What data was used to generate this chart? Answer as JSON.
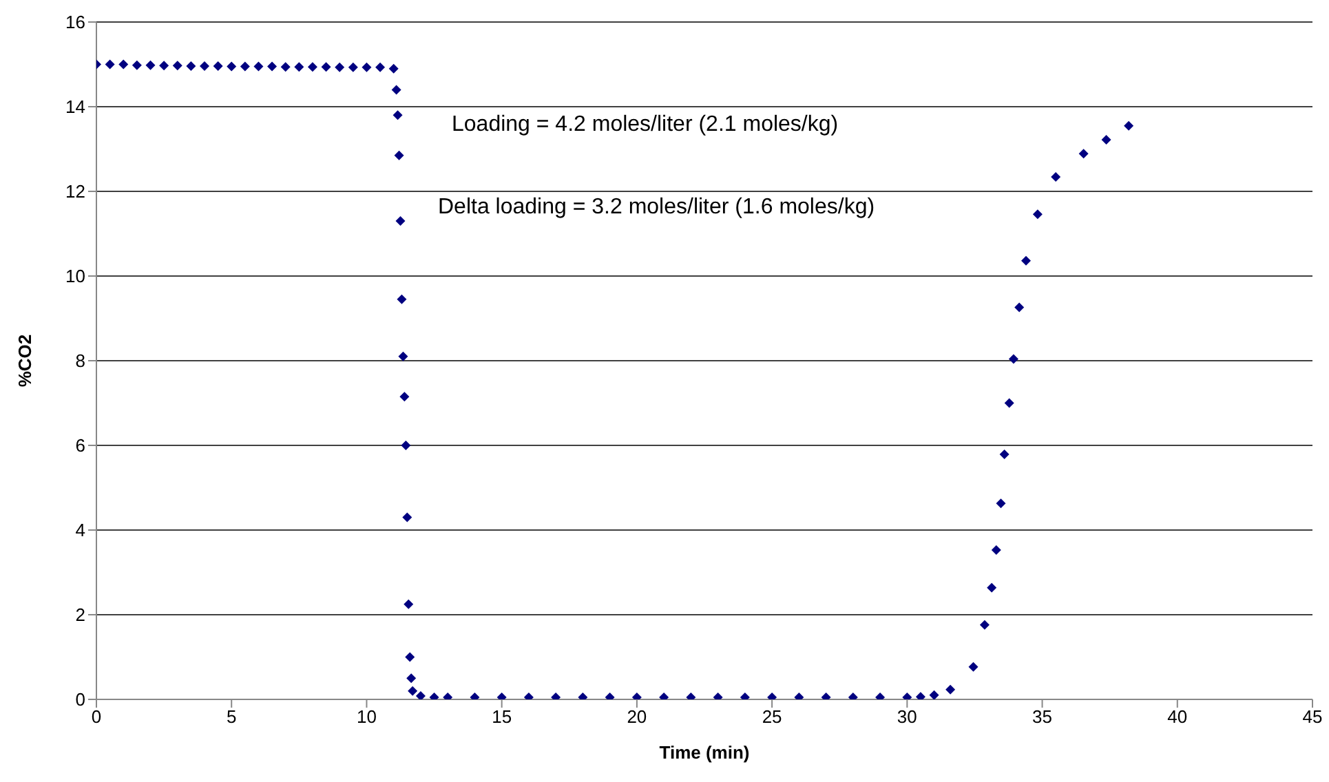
{
  "chart_data": {
    "type": "scatter",
    "xlabel": "Time (min)",
    "ylabel": "%CO2",
    "xlim": [
      0,
      45
    ],
    "xticks": [
      0,
      5,
      10,
      15,
      20,
      25,
      30,
      35,
      40,
      45
    ],
    "ylim": [
      0,
      16
    ],
    "yticks": [
      0,
      2,
      4,
      6,
      8,
      10,
      12,
      14,
      16
    ],
    "grid": "y",
    "marker": "diamond",
    "annotations": [
      "Loading =  4.2 moles/liter (2.1 moles/kg)",
      "Delta loading =  3.2 moles/liter (1.6 moles/kg)"
    ],
    "series": [
      {
        "color": "#000080",
        "x": [
          0,
          0.5,
          1,
          1.5,
          2,
          2.5,
          3,
          3.5,
          4,
          4.5,
          5,
          5.5,
          6,
          6.5,
          7,
          7.5,
          8,
          8.5,
          9,
          9.5,
          10,
          10.5,
          11,
          11.1,
          11.15,
          11.2,
          11.25,
          11.3,
          11.35,
          11.4,
          11.45,
          11.5,
          11.55,
          11.6,
          11.65,
          11.7,
          12,
          12.5,
          13,
          14,
          15,
          16,
          17,
          18,
          19,
          20,
          21,
          22,
          23,
          24,
          25,
          26,
          27,
          28,
          29,
          30,
          30.5,
          31,
          31.6,
          32.45,
          32.87,
          33.13,
          33.3,
          33.47,
          33.6,
          33.78,
          33.94,
          34.15,
          34.4,
          34.83,
          35.5,
          36.53,
          37.37,
          38.2
        ],
        "values": [
          15,
          15,
          15,
          14.98,
          14.98,
          14.97,
          14.97,
          14.96,
          14.96,
          14.96,
          14.95,
          14.95,
          14.95,
          14.95,
          14.94,
          14.94,
          14.94,
          14.94,
          14.93,
          14.93,
          14.93,
          14.93,
          14.9,
          14.4,
          13.8,
          12.85,
          11.3,
          9.45,
          8.1,
          7.15,
          6.0,
          4.3,
          2.25,
          1.0,
          0.5,
          0.2,
          0.08,
          0.05,
          0.05,
          0.05,
          0.05,
          0.05,
          0.05,
          0.05,
          0.05,
          0.05,
          0.05,
          0.05,
          0.05,
          0.05,
          0.05,
          0.05,
          0.05,
          0.05,
          0.05,
          0.05,
          0.06,
          0.1,
          0.23,
          0.77,
          1.76,
          2.64,
          3.53,
          4.63,
          5.79,
          7.0,
          8.04,
          9.26,
          10.36,
          11.46,
          12.34,
          12.89,
          13.22,
          13.55
        ]
      }
    ]
  }
}
